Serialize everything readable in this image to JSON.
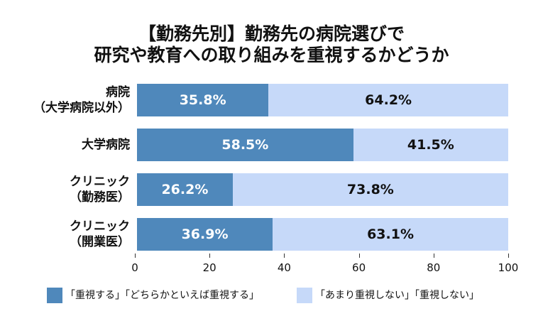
{
  "title_lines": [
    "【勤務先別】勤務先の病院選びで",
    "研究や教育への取り組みを重視するかどうか"
  ],
  "chart_data": {
    "type": "bar",
    "orientation": "horizontal",
    "stacked": true,
    "title": "【勤務先別】勤務先の病院選びで 研究や教育への取り組みを重視するかどうか",
    "categories": [
      [
        "病院",
        "（大学病院以外）"
      ],
      [
        "大学病院"
      ],
      [
        "クリニック",
        "（勤務医）"
      ],
      [
        "クリニック",
        "（開業医）"
      ]
    ],
    "series": [
      {
        "name": "「重視する」「どちらかといえば重視する」",
        "color": "#4f88bb",
        "values": [
          35.8,
          58.5,
          26.2,
          36.9
        ],
        "labels": [
          "35.8%",
          "58.5%",
          "26.2%",
          "36.9%"
        ]
      },
      {
        "name": "「あまり重視しない」「重視しない」",
        "color": "#c6d9f9",
        "values": [
          64.2,
          41.5,
          73.8,
          63.1
        ],
        "labels": [
          "64.2%",
          "41.5%",
          "73.8%",
          "63.1%"
        ]
      }
    ],
    "xlim": [
      0,
      100
    ],
    "xticks": [
      "0",
      "20",
      "40",
      "60",
      "80",
      "100"
    ],
    "xtick_values": [
      0,
      20,
      40,
      60,
      80,
      100
    ],
    "legend_position": "bottom",
    "grid": false
  }
}
